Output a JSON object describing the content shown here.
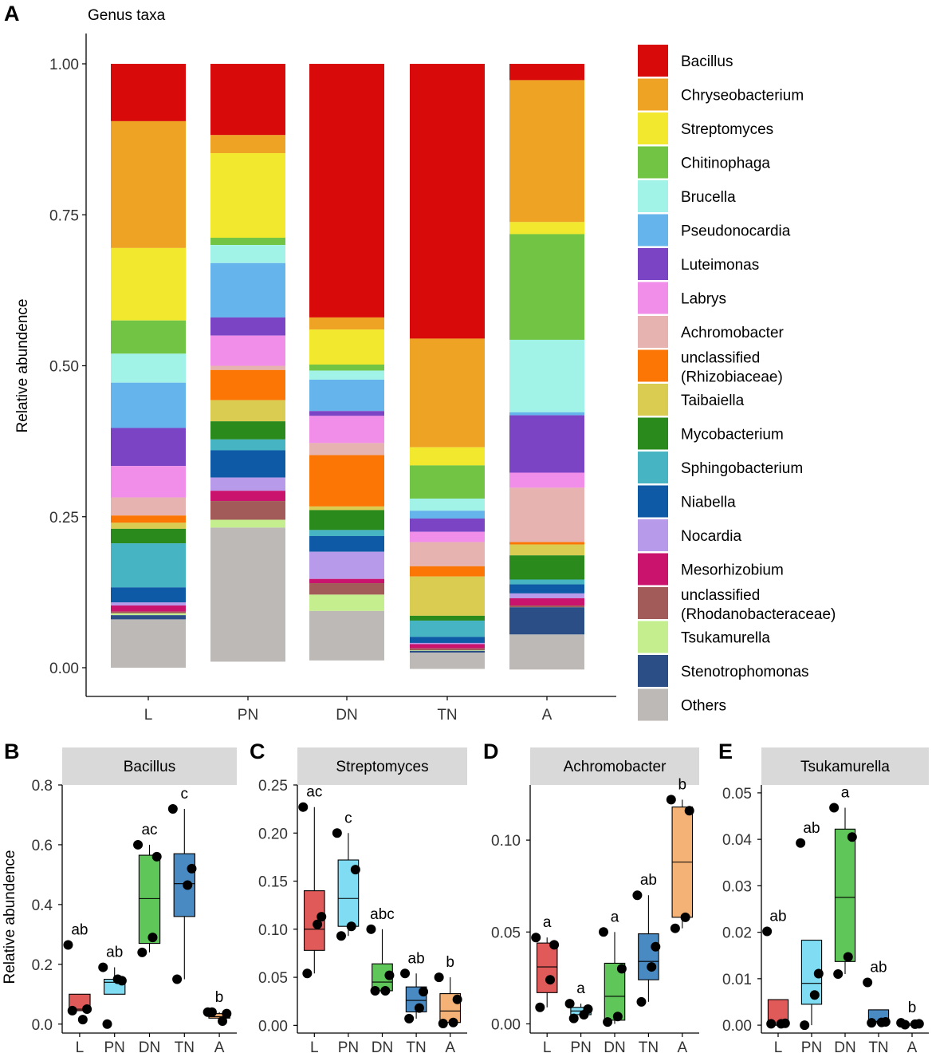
{
  "panel_letters": [
    "A",
    "B",
    "C",
    "D",
    "E"
  ],
  "chart_data": [
    {
      "type": "stacked-bar",
      "panel": "A",
      "title": "Genus taxa",
      "ylabel": "Relative abundence",
      "xlabel": "",
      "ylim": [
        0,
        1
      ],
      "yticks": [
        "0.00",
        "0.25",
        "0.50",
        "0.75",
        "1.00"
      ],
      "categories": [
        "L",
        "PN",
        "DN",
        "TN",
        "A"
      ],
      "legend_position": "right",
      "stack_order": "first series on top",
      "series": [
        {
          "name": "Bacillus",
          "color": "#d90a0a",
          "values": [
            0.095,
            0.118,
            0.42,
            0.455,
            0.027
          ]
        },
        {
          "name": "Chryseobacterium",
          "color": "#efa325",
          "values": [
            0.21,
            0.03,
            0.02,
            0.18,
            0.235
          ]
        },
        {
          "name": "Streptomyces",
          "color": "#f2e92e",
          "values": [
            0.12,
            0.14,
            0.058,
            0.03,
            0.02
          ]
        },
        {
          "name": "Chitinophaga",
          "color": "#72c444",
          "values": [
            0.055,
            0.012,
            0.01,
            0.055,
            0.175
          ]
        },
        {
          "name": "Brucella",
          "color": "#a1f3e8",
          "values": [
            0.048,
            0.03,
            0.015,
            0.02,
            0.12
          ]
        },
        {
          "name": "Pseudonocardia",
          "color": "#65b4ec",
          "values": [
            0.075,
            0.09,
            0.052,
            0.013,
            0.005
          ]
        },
        {
          "name": "Luteimonas",
          "color": "#7b44c4",
          "values": [
            0.063,
            0.03,
            0.008,
            0.022,
            0.095
          ]
        },
        {
          "name": "Labrys",
          "color": "#f18ee9",
          "values": [
            0.052,
            0.05,
            0.045,
            0.017,
            0.025
          ]
        },
        {
          "name": "Achromobacter",
          "color": "#e7b3b1",
          "values": [
            0.03,
            0.007,
            0.02,
            0.04,
            0.09
          ]
        },
        {
          "name": "unclassified\n(Rhizobiaceae)",
          "color": "#fb7604",
          "values": [
            0.012,
            0.05,
            0.085,
            0.017,
            0.004
          ]
        },
        {
          "name": "Taibaiella",
          "color": "#d9cc50",
          "values": [
            0.01,
            0.035,
            0.006,
            0.065,
            0.018
          ]
        },
        {
          "name": "Mycobacterium",
          "color": "#2a8a1c",
          "values": [
            0.024,
            0.03,
            0.033,
            0.008,
            0.04
          ]
        },
        {
          "name": "Sphingobacterium",
          "color": "#46b4c2",
          "values": [
            0.073,
            0.018,
            0.01,
            0.027,
            0.008
          ]
        },
        {
          "name": "Niabella",
          "color": "#0f5aa6",
          "values": [
            0.025,
            0.045,
            0.026,
            0.01,
            0.015
          ]
        },
        {
          "name": "Nocardia",
          "color": "#b79bea",
          "values": [
            0.005,
            0.022,
            0.045,
            0.002,
            0.008
          ]
        },
        {
          "name": "Mesorhizobium",
          "color": "#c9136d",
          "values": [
            0.01,
            0.017,
            0.007,
            0.007,
            0.012
          ]
        },
        {
          "name": "unclassified\n(Rhodanobacteraceae)",
          "color": "#a25b59",
          "values": [
            0.003,
            0.031,
            0.019,
            0.003,
            0.003
          ]
        },
        {
          "name": "Tsukamurella",
          "color": "#c5ef8e",
          "values": [
            0.003,
            0.013,
            0.027,
            0.001,
            0.0
          ]
        },
        {
          "name": "Stenotrophomonas",
          "color": "#2c4e87",
          "values": [
            0.007,
            0.0,
            0.0,
            0.003,
            0.045
          ]
        },
        {
          "name": "Others",
          "color": "#bdb9b6",
          "values": [
            0.08,
            0.222,
            0.082,
            0.027,
            0.058
          ]
        }
      ]
    },
    {
      "type": "box",
      "panel": "B",
      "title": "Bacillus",
      "ylabel": "Relative abundence",
      "ylim": [
        -0.03,
        0.8
      ],
      "yticks": [
        0.0,
        0.2,
        0.4,
        0.6,
        0.8
      ],
      "tick_labels": [
        "0.0",
        "0.2",
        "0.4",
        "0.6",
        "0.8"
      ],
      "categories": [
        "L",
        "PN",
        "DN",
        "TN",
        "A"
      ],
      "colors": [
        "#e05a5a",
        "#7fdcf3",
        "#5fc75a",
        "#4a8ac3",
        "#f4b276"
      ],
      "boxes": [
        {
          "q1": 0.045,
          "median": 0.05,
          "q3": 0.1,
          "whisker_low": 0.045,
          "whisker_high": 0.1
        },
        {
          "q1": 0.1,
          "median": 0.14,
          "q3": 0.15,
          "whisker_low": 0.1,
          "whisker_high": 0.19
        },
        {
          "q1": 0.27,
          "median": 0.42,
          "q3": 0.565,
          "whisker_low": 0.24,
          "whisker_high": 0.6
        },
        {
          "q1": 0.36,
          "median": 0.47,
          "q3": 0.57,
          "whisker_low": 0.15,
          "whisker_high": 0.72
        },
        {
          "q1": 0.02,
          "median": 0.025,
          "q3": 0.035,
          "whisker_low": 0.01,
          "whisker_high": 0.04
        }
      ],
      "points": [
        [
          0.265,
          0.05,
          0.015,
          0.045
        ],
        [
          0.19,
          0.145,
          0.15,
          0.0
        ],
        [
          0.6,
          0.56,
          0.29,
          0.24
        ],
        [
          0.72,
          0.52,
          0.465,
          0.15
        ],
        [
          0.04,
          0.035,
          0.01,
          0.04
        ]
      ],
      "letters": [
        "ab",
        "ab",
        "ac",
        "c",
        "b"
      ]
    },
    {
      "type": "box",
      "panel": "C",
      "title": "Streptomyces",
      "ylabel": "",
      "ylim": [
        -0.008,
        0.25
      ],
      "yticks": [
        0.0,
        0.05,
        0.1,
        0.15,
        0.2,
        0.25
      ],
      "tick_labels": [
        "0.00",
        "0.05",
        "0.10",
        "0.15",
        "0.20",
        "0.25"
      ],
      "categories": [
        "L",
        "PN",
        "DN",
        "TN",
        "A"
      ],
      "colors": [
        "#e05a5a",
        "#7fdcf3",
        "#5fc75a",
        "#4a8ac3",
        "#f4b276"
      ],
      "boxes": [
        {
          "q1": 0.078,
          "median": 0.1,
          "q3": 0.14,
          "whisker_low": 0.054,
          "whisker_high": 0.227
        },
        {
          "q1": 0.103,
          "median": 0.132,
          "q3": 0.172,
          "whisker_low": 0.093,
          "whisker_high": 0.2
        },
        {
          "q1": 0.036,
          "median": 0.045,
          "q3": 0.064,
          "whisker_low": 0.036,
          "whisker_high": 0.1
        },
        {
          "q1": 0.014,
          "median": 0.026,
          "q3": 0.04,
          "whisker_low": 0.007,
          "whisker_high": 0.054
        },
        {
          "q1": 0.003,
          "median": 0.015,
          "q3": 0.033,
          "whisker_low": 0.0,
          "whisker_high": 0.05
        }
      ],
      "points": [
        [
          0.227,
          0.113,
          0.105,
          0.054
        ],
        [
          0.2,
          0.162,
          0.103,
          0.093
        ],
        [
          0.1,
          0.052,
          0.036,
          0.036
        ],
        [
          0.054,
          0.035,
          0.018,
          0.007
        ],
        [
          0.05,
          0.027,
          0.003,
          0.002
        ]
      ],
      "letters": [
        "ac",
        "c",
        "abc",
        "ab",
        "b"
      ]
    },
    {
      "type": "box",
      "panel": "D",
      "title": "Achromobacter",
      "ylabel": "",
      "ylim": [
        -0.005,
        0.13
      ],
      "yticks": [
        0.0,
        0.05,
        0.1
      ],
      "tick_labels": [
        "0.00",
        "0.05",
        "0.10"
      ],
      "categories": [
        "L",
        "PN",
        "DN",
        "TN",
        "A"
      ],
      "colors": [
        "#e05a5a",
        "#7fdcf3",
        "#5fc75a",
        "#4a8ac3",
        "#f4b276"
      ],
      "boxes": [
        {
          "q1": 0.017,
          "median": 0.031,
          "q3": 0.044,
          "whisker_low": 0.009,
          "whisker_high": 0.047
        },
        {
          "q1": 0.005,
          "median": 0.007,
          "q3": 0.009,
          "whisker_low": 0.003,
          "whisker_high": 0.011
        },
        {
          "q1": 0.002,
          "median": 0.015,
          "q3": 0.033,
          "whisker_low": 0.0,
          "whisker_high": 0.05
        },
        {
          "q1": 0.024,
          "median": 0.034,
          "q3": 0.049,
          "whisker_low": 0.012,
          "whisker_high": 0.07
        },
        {
          "q1": 0.058,
          "median": 0.088,
          "q3": 0.118,
          "whisker_low": 0.052,
          "whisker_high": 0.122
        }
      ],
      "points": [
        [
          0.047,
          0.043,
          0.024,
          0.009
        ],
        [
          0.011,
          0.008,
          0.005,
          0.003
        ],
        [
          0.05,
          0.03,
          0.004,
          0.001
        ],
        [
          0.07,
          0.042,
          0.031,
          0.012
        ],
        [
          0.122,
          0.116,
          0.058,
          0.052
        ]
      ],
      "letters": [
        "a",
        "a",
        "a",
        "ab",
        "b"
      ]
    },
    {
      "type": "box",
      "panel": "E",
      "title": "Tsukamurella",
      "ylabel": "",
      "ylim": [
        -0.0017,
        0.0517
      ],
      "yticks": [
        0.0,
        0.01,
        0.02,
        0.03,
        0.04,
        0.05
      ],
      "tick_labels": [
        "0.00",
        "0.01",
        "0.02",
        "0.03",
        "0.04",
        "0.05"
      ],
      "categories": [
        "L",
        "PN",
        "DN",
        "TN",
        "A"
      ],
      "colors": [
        "#e05a5a",
        "#7fdcf3",
        "#5fc75a",
        "#4a8ac3",
        "#f4b276"
      ],
      "boxes": [
        {
          "q1": 0.0,
          "median": 0.0,
          "q3": 0.0055,
          "whisker_low": 0.0,
          "whisker_high": 0.0055
        },
        {
          "q1": 0.0045,
          "median": 0.009,
          "q3": 0.0183,
          "whisker_low": 0.0,
          "whisker_high": 0.0183
        },
        {
          "q1": 0.0137,
          "median": 0.0275,
          "q3": 0.0422,
          "whisker_low": 0.011,
          "whisker_high": 0.0468
        },
        {
          "q1": 0.0005,
          "median": 0.0008,
          "q3": 0.0033,
          "whisker_low": 0.0005,
          "whisker_high": 0.0033
        },
        {
          "q1": 0.0,
          "median": 0.0,
          "q3": 0.0003,
          "whisker_low": 0.0,
          "whisker_high": 0.0005
        }
      ],
      "points": [
        [
          0.0202,
          0.0004,
          0.0003,
          0.0003
        ],
        [
          0.0392,
          0.0111,
          0.0065,
          0.0
        ],
        [
          0.0468,
          0.0405,
          0.0147,
          0.011
        ],
        [
          0.0092,
          0.0007,
          0.0006,
          0.0005
        ],
        [
          0.0005,
          0.0003,
          0.0002,
          0.0001
        ]
      ],
      "letters": [
        "ab",
        "ab",
        "a",
        "ab",
        "b"
      ]
    }
  ]
}
